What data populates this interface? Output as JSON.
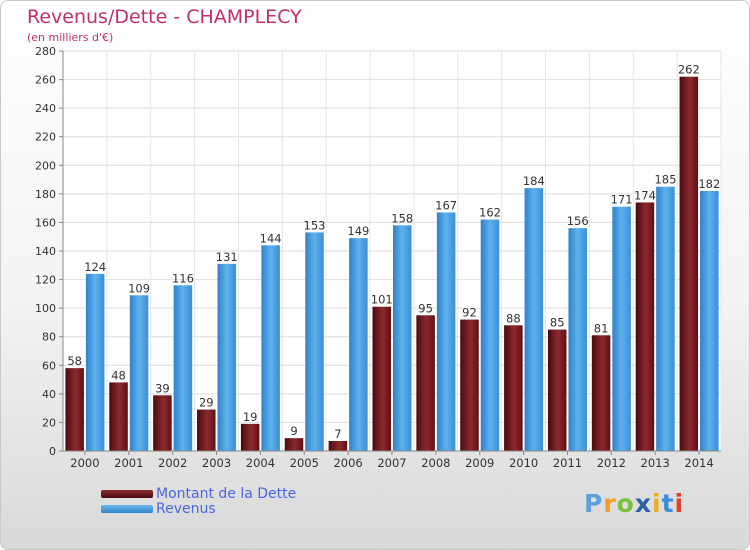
{
  "title": "Revenus/Dette - CHAMPLECY",
  "subtitle": "(en milliers d'€)",
  "colors": {
    "dette": "#7a1e22",
    "revenus": "#4ea3e3",
    "title": "#c0306a",
    "legend_text": "#4a66e0"
  },
  "chart_data": {
    "type": "bar",
    "title": "Revenus/Dette - CHAMPLECY",
    "subtitle": "(en milliers d'€)",
    "categories": [
      "2000",
      "2001",
      "2002",
      "2003",
      "2004",
      "2005",
      "2006",
      "2007",
      "2008",
      "2009",
      "2010",
      "2011",
      "2012",
      "2013",
      "2014"
    ],
    "series": [
      {
        "name": "Montant de la Dette",
        "values": [
          58,
          48,
          39,
          29,
          19,
          9,
          7,
          101,
          95,
          92,
          88,
          85,
          81,
          174,
          262
        ]
      },
      {
        "name": "Revenus",
        "values": [
          124,
          109,
          116,
          131,
          144,
          153,
          149,
          158,
          167,
          162,
          184,
          156,
          171,
          185,
          182
        ]
      }
    ],
    "ylim": [
      0,
      280
    ],
    "yticks": [
      0,
      20,
      40,
      60,
      80,
      100,
      120,
      140,
      160,
      180,
      200,
      220,
      240,
      260,
      280
    ],
    "grid": true,
    "legend": "bottom-left"
  },
  "legend": [
    {
      "label": "Montant de la Dette"
    },
    {
      "label": "Revenus"
    }
  ],
  "logo": {
    "p": "P",
    "r": "r",
    "o": "o",
    "x": "x",
    "i1": "i",
    "t": "t",
    "i2": "i"
  }
}
